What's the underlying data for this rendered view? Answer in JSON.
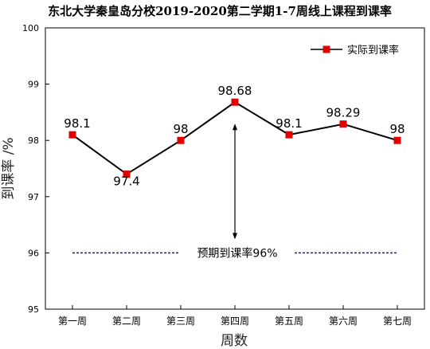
{
  "chart_data": {
    "type": "line",
    "title": "东北大学秦皇岛分校2019-2020第二学期1-7周线上课程到课率",
    "xlabel": "周数",
    "ylabel": "到课率 /%",
    "categories": [
      "第一周",
      "第二周",
      "第三周",
      "第四周",
      "第五周",
      "第六周",
      "第七周"
    ],
    "series": [
      {
        "name": "实际到课率",
        "values": [
          98.1,
          97.4,
          98,
          98.68,
          98.1,
          98.29,
          98
        ],
        "labels": [
          "98.1",
          "97.4",
          "98",
          "98.68",
          "98.1",
          "98.29",
          "98"
        ],
        "line_color": "#000000",
        "marker_color": "#e00000"
      }
    ],
    "ylim": [
      95,
      100
    ],
    "yticks": [
      "95",
      "96",
      "97",
      "98",
      "99",
      "100"
    ],
    "reference_line": {
      "value": 96,
      "label": "预期到课率96%",
      "color": "#1a1aa6"
    },
    "arrow": {
      "from": 98.68,
      "to": 96
    },
    "legend": "top-right",
    "grid": false
  }
}
